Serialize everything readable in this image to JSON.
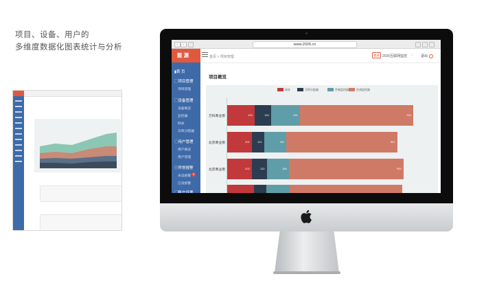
{
  "caption": {
    "line1": "项目、设备、用户的",
    "line2": "多维度数据化图表统计与分析"
  },
  "browser": {
    "url": "www.2026.cn"
  },
  "app": {
    "logo": "能 源",
    "breadcrumb": "首页 > 项目管理",
    "site_logo": "能源",
    "site_name": "2026互联网监控",
    "logout": "退出",
    "page_title": "项目概览"
  },
  "sidebar": {
    "items": [
      {
        "label": "首 页",
        "icon": "home-icon"
      },
      {
        "label": "项目管理",
        "icon": "folder-icon",
        "children": [
          "项目管理"
        ]
      },
      {
        "label": "设备管理",
        "icon": "device-icon",
        "children": [
          "设备概览",
          "监控器",
          "网关",
          "功率分配器"
        ]
      },
      {
        "label": "用户管理",
        "icon": "user-icon",
        "children": [
          "用户概览",
          "用户管理"
        ]
      },
      {
        "label": "异常报警",
        "icon": "alert-icon",
        "children": [
          "未读报警",
          "已读报警"
        ]
      },
      {
        "label": "账户设置",
        "icon": "settings-icon"
      }
    ],
    "badge": "5"
  },
  "colors": {
    "accent": "#e2583e",
    "sidebar": "#3f6aa8",
    "series": [
      "#c1393a",
      "#2c3d51",
      "#5f9da8",
      "#cf7a66"
    ]
  },
  "chart_data": {
    "type": "bar",
    "orientation": "horizontal",
    "stacked": true,
    "legend_position": "top",
    "series": [
      {
        "name": "网关",
        "values": [
          224,
          201,
          202,
          220
        ]
      },
      {
        "name": "功率分配器",
        "values": [
          134,
          101,
          122,
          98
        ]
      },
      {
        "name": "传感监控器",
        "values": [
          234,
          181,
          180,
          188
        ]
      },
      {
        "name": "空调监控器",
        "values": [
          924,
          901,
          932,
          920
        ]
      }
    ],
    "categories": [
      "万科商业街",
      "北京商业街",
      "北京商业街",
      ""
    ],
    "value_labels": [
      [
        "224",
        "134",
        "234",
        "924"
      ],
      [
        "201",
        "101",
        "181",
        "901"
      ],
      [
        "202",
        "122",
        "180",
        "932"
      ],
      [
        "",
        "",
        "",
        ""
      ]
    ]
  }
}
